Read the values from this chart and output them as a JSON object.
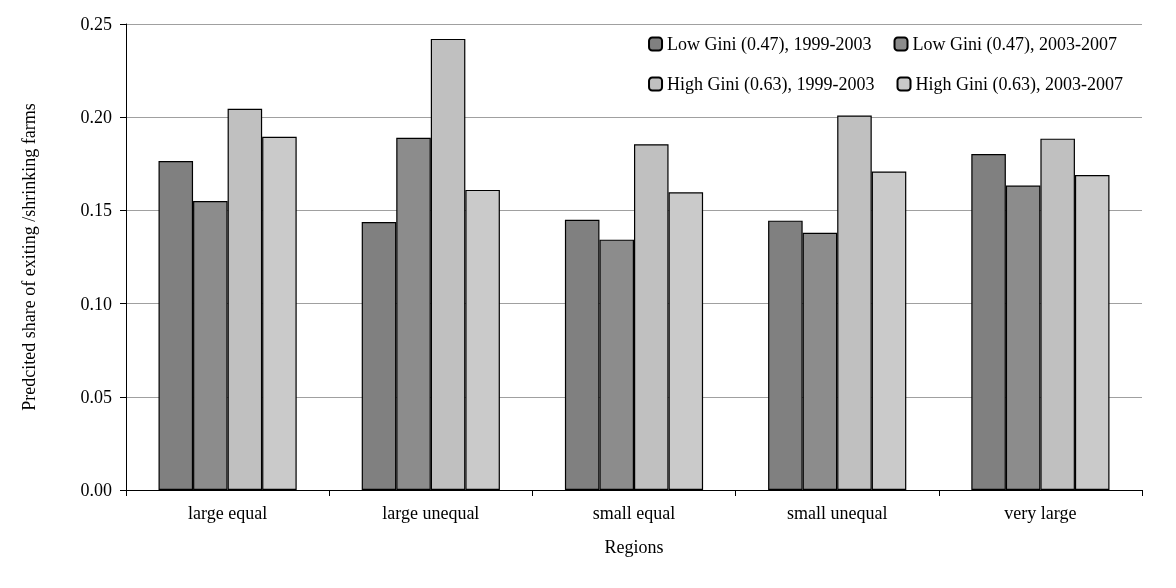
{
  "chart_data": {
    "type": "bar",
    "xlabel": "Regions",
    "ylabel": "Predcited share of exiting /shrinking farms",
    "categories": [
      "large equal",
      "large unequal",
      "small equal",
      "small unequal",
      "very large"
    ],
    "series": [
      {
        "name": "Low Gini (0.47), 1999-2003",
        "color": "#808080",
        "values": [
          0.1765,
          0.1438,
          0.145,
          0.1445,
          0.1802
        ]
      },
      {
        "name": "Low Gini (0.47), 2003-2007",
        "color": "#8c8c8c",
        "values": [
          0.155,
          0.189,
          0.1343,
          0.138,
          0.1633
        ]
      },
      {
        "name": "High Gini (0.63), 1999-2003",
        "color": "#c0c0c0",
        "values": [
          0.2045,
          0.242,
          0.1855,
          0.2009,
          0.1885
        ]
      },
      {
        "name": "High Gini (0.63), 2003-2007",
        "color": "#cacaca",
        "values": [
          0.1895,
          0.161,
          0.1597,
          0.1709,
          0.169
        ]
      }
    ],
    "ylim": [
      0,
      0.25
    ],
    "yticks": [
      {
        "value": 0,
        "label": "0.00"
      },
      {
        "value": 0.05,
        "label": "0.05"
      },
      {
        "value": 0.1,
        "label": "0.10"
      },
      {
        "value": 0.15,
        "label": "0.15"
      },
      {
        "value": 0.2,
        "label": "0.20"
      },
      {
        "value": 0.25,
        "label": "0.25"
      }
    ],
    "grid": "y",
    "legend": "top right"
  }
}
